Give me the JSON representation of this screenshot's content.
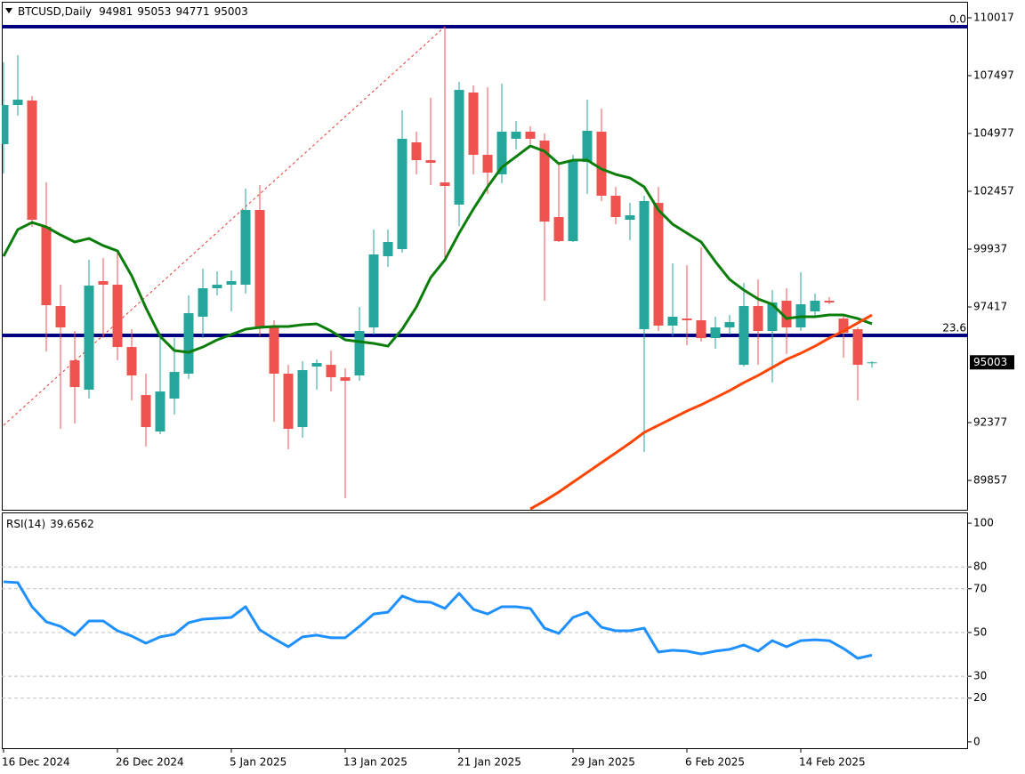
{
  "chart_data": [
    {
      "type": "candlestick",
      "title": "BTCUSD,Daily",
      "categories": [
        "16 Dec 2024",
        null,
        null,
        null,
        null,
        null,
        null,
        null,
        "26 Dec 2024",
        null,
        null,
        null,
        null,
        null,
        null,
        null,
        "5 Jan 2025",
        null,
        null,
        null,
        null,
        null,
        null,
        null,
        "13 Jan 2025",
        null,
        null,
        null,
        null,
        null,
        null,
        null,
        "21 Jan 2025",
        null,
        null,
        null,
        null,
        null,
        null,
        null,
        "29 Jan 2025",
        null,
        null,
        null,
        null,
        null,
        null,
        null,
        "6 Feb 2025",
        null,
        null,
        null,
        null,
        null,
        null,
        null,
        "14 Feb 2025",
        null,
        null,
        null,
        null,
        null
      ],
      "open": [
        104511,
        106217,
        106411,
        100906,
        97455,
        95090,
        93811,
        98541,
        98386,
        95672,
        93578,
        91989,
        93423,
        94509,
        96990,
        98231,
        98386,
        98386,
        101642,
        96563,
        94509,
        92182,
        94819,
        94896,
        94354,
        94431,
        96525,
        99626,
        99936,
        104589,
        103813,
        102844,
        101875,
        106760,
        104046,
        103193,
        104744,
        105054,
        104666,
        101332,
        100285,
        103736,
        105054,
        102263,
        101216,
        96447,
        101952,
        96602,
        96912,
        96835,
        96059,
        96525,
        94896,
        97455,
        96370,
        97688,
        96525,
        97222,
        97688,
        96912,
        96447,
        94981
      ],
      "high": [
        108078,
        108388,
        106605,
        102844,
        98386,
        96370,
        99471,
        99549,
        99859,
        96447,
        94509,
        96059,
        96059,
        97920,
        99083,
        98967,
        99006,
        102573,
        102728,
        96835,
        94896,
        95051,
        95129,
        95517,
        94741,
        97416,
        100789,
        100789,
        105985,
        105054,
        106527,
        109629,
        107225,
        107070,
        106993,
        107148,
        105519,
        105287,
        104976,
        103658,
        104046,
        106450,
        106062,
        102650,
        101952,
        102263,
        102650,
        99316,
        99239,
        100014,
        96990,
        97067,
        98463,
        98618,
        98153,
        98231,
        98928,
        97998,
        97843,
        97067,
        96525,
        95053
      ],
      "low": [
        103232,
        105752,
        100906,
        95478,
        92105,
        92337,
        93423,
        96059,
        95090,
        93345,
        91329,
        91872,
        92725,
        94276,
        96059,
        97920,
        97222,
        97998,
        96137,
        92415,
        91213,
        91717,
        93811,
        93733,
        89081,
        94198,
        96214,
        99161,
        99781,
        103193,
        102728,
        99549,
        100944,
        103193,
        102340,
        102805,
        104279,
        104511,
        97688,
        100247,
        100247,
        102340,
        102030,
        101022,
        100324,
        91097,
        96370,
        96137,
        95749,
        95904,
        95594,
        96214,
        94819,
        94896,
        94121,
        95362,
        96370,
        96990,
        97533,
        95206,
        93345,
        94771
      ],
      "close": [
        106217,
        106450,
        101216,
        97494,
        96525,
        93927,
        98347,
        98386,
        95672,
        94431,
        92182,
        93733,
        94586,
        97145,
        98231,
        98386,
        98541,
        101642,
        96563,
        94509,
        92105,
        94664,
        94974,
        94354,
        94198,
        96370,
        99704,
        100247,
        104744,
        103813,
        103697,
        102689,
        106876,
        104046,
        103271,
        105054,
        105054,
        104744,
        101138,
        100285,
        103813,
        105093,
        102263,
        101332,
        101410,
        102030,
        96602,
        96990,
        96835,
        96059,
        96525,
        96757,
        97455,
        96370,
        97610,
        96525,
        97533,
        97688,
        97610,
        96292,
        94896,
        95003
      ],
      "up_color": "#26a69a",
      "down_color": "#ef5350",
      "ylim": [
        88540,
        110637
      ],
      "yticks": [
        89857,
        92377,
        97417,
        99937,
        102457,
        104977,
        107497,
        110017
      ],
      "lines": [
        {
          "color": "#0a7d0a",
          "values": [
            99626,
            100789,
            101099,
            100906,
            100557,
            100247,
            100402,
            100091,
            99859,
            98773,
            97378,
            96137,
            95517,
            95439,
            95672,
            95982,
            96214,
            96447,
            96525,
            96563,
            96563,
            96641,
            96680,
            96370,
            95982,
            95904,
            95827,
            95710,
            96447,
            97416,
            98696,
            99471,
            100634,
            101681,
            102650,
            103503,
            103968,
            104434,
            104201,
            103658,
            103813,
            103813,
            103426,
            103193,
            103038,
            102650,
            101642,
            101022,
            100634,
            100247,
            99394,
            98618,
            98153,
            97765,
            97533,
            96912,
            96990,
            96990,
            97067,
            97067,
            96912,
            96680
          ]
        },
        {
          "color": "#ff4500",
          "values": [
            null,
            null,
            null,
            null,
            null,
            null,
            null,
            null,
            null,
            null,
            null,
            null,
            null,
            null,
            null,
            null,
            null,
            null,
            null,
            null,
            null,
            null,
            null,
            null,
            null,
            null,
            null,
            null,
            null,
            null,
            null,
            null,
            null,
            null,
            null,
            null,
            null,
            88616,
            88964,
            89352,
            89779,
            90205,
            90632,
            91058,
            91485,
            91950,
            92260,
            92570,
            92880,
            93152,
            93462,
            93772,
            94121,
            94431,
            94780,
            95129,
            95400,
            95710,
            96059,
            96370,
            96718,
            97067
          ]
        }
      ],
      "fib_levels": [
        {
          "label": "0.0",
          "value": 109629
        },
        {
          "label": "23.6",
          "value": 96177
        }
      ],
      "fib_color": "#000080",
      "fib_trend": {
        "x": [
          0,
          31
        ],
        "values": [
          92260,
          109629
        ],
        "color": "#e53935"
      }
    },
    {
      "type": "line",
      "title": "RSI(14)",
      "values": [
        73.2,
        72.8,
        61.8,
        54.9,
        52.8,
        48.8,
        55.3,
        55.3,
        50.8,
        48.4,
        45.1,
        48.0,
        49.2,
        54.5,
        56.1,
        56.5,
        56.9,
        61.8,
        51.2,
        47.2,
        43.5,
        48.0,
        48.8,
        47.6,
        47.6,
        52.8,
        58.5,
        59.3,
        66.7,
        64.2,
        63.8,
        61.0,
        67.9,
        60.6,
        58.5,
        61.8,
        61.8,
        61.0,
        52.0,
        49.6,
        56.9,
        59.3,
        52.4,
        50.8,
        50.8,
        52.0,
        41.1,
        41.9,
        41.5,
        40.2,
        41.5,
        42.3,
        44.3,
        41.5,
        46.3,
        43.5,
        46.3,
        46.7,
        46.3,
        42.7,
        38.2,
        39.6562
      ],
      "color": "#1e90ff",
      "ylim": [
        -3.3,
        104.5
      ],
      "yticks": [
        0,
        20,
        30,
        50,
        70,
        80,
        100
      ],
      "levels": [
        20,
        30,
        50,
        70,
        80
      ]
    }
  ]
}
